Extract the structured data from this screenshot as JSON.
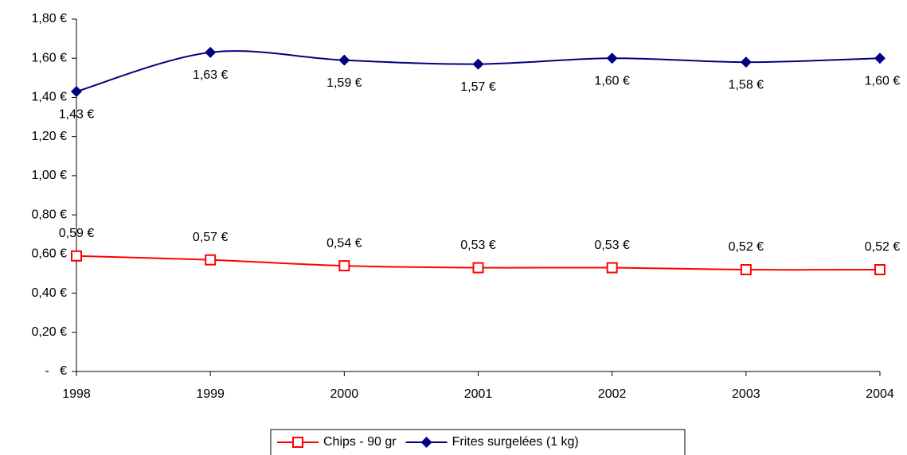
{
  "chart_data": {
    "type": "line",
    "categories": [
      "1998",
      "1999",
      "2000",
      "2001",
      "2002",
      "2003",
      "2004"
    ],
    "series": [
      {
        "name": "Chips - 90 gr",
        "color": "#ff0000",
        "marker": "square-open",
        "values": [
          0.59,
          0.57,
          0.54,
          0.53,
          0.53,
          0.52,
          0.52
        ],
        "value_labels": [
          "0,59 €",
          "0,57 €",
          "0,54 €",
          "0,53 €",
          "0,53 €",
          "0,52 €",
          "0,52 €"
        ]
      },
      {
        "name": "Frites surgelées (1 kg)",
        "color": "#000080",
        "marker": "diamond",
        "values": [
          1.43,
          1.63,
          1.59,
          1.57,
          1.6,
          1.58,
          1.6
        ],
        "value_labels": [
          "1,43 €",
          "1,63 €",
          "1,59 €",
          "1,57 €",
          "1,60 €",
          "1,58 €",
          "1,60 €"
        ]
      }
    ],
    "ylim": [
      0,
      1.8
    ],
    "yticks": [
      {
        "value": 0,
        "label": "-   €"
      },
      {
        "value": 0.2,
        "label": "0,20 €"
      },
      {
        "value": 0.4,
        "label": "0,40 €"
      },
      {
        "value": 0.6,
        "label": "0,60 €"
      },
      {
        "value": 0.8,
        "label": "0,80 €"
      },
      {
        "value": 1.0,
        "label": "1,00 €"
      },
      {
        "value": 1.2,
        "label": "1,20 €"
      },
      {
        "value": 1.4,
        "label": "1,40 €"
      },
      {
        "value": 1.6,
        "label": "1,60 €"
      },
      {
        "value": 1.8,
        "label": "1,80 €"
      }
    ],
    "grid": false,
    "smooth": true,
    "legend": "bottom"
  }
}
